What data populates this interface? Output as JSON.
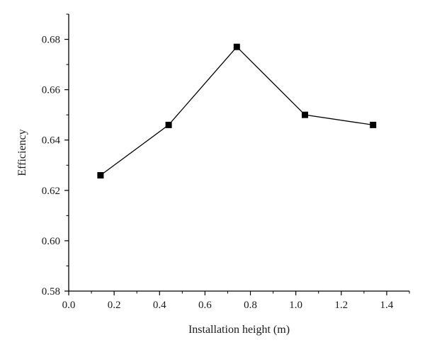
{
  "chart_data": {
    "type": "line",
    "title": "",
    "xlabel": "Installation height (m)",
    "ylabel": "Efficiency",
    "xlim": [
      0.0,
      1.5
    ],
    "ylim": [
      0.58,
      0.69
    ],
    "xticks": [
      "0.0",
      "0.2",
      "0.4",
      "0.6",
      "0.8",
      "1.0",
      "1.2",
      "1.4"
    ],
    "xtick_values": [
      0.0,
      0.2,
      0.4,
      0.6,
      0.8,
      1.0,
      1.2,
      1.4
    ],
    "yticks": [
      "0.58",
      "0.60",
      "0.62",
      "0.64",
      "0.66",
      "0.68"
    ],
    "ytick_values": [
      0.58,
      0.6,
      0.62,
      0.64,
      0.66,
      0.68
    ],
    "grid": false,
    "marker": "square",
    "line_color": "#000000",
    "series": [
      {
        "x": [
          0.14,
          0.44,
          0.74,
          1.04,
          1.34
        ],
        "y": [
          0.626,
          0.646,
          0.677,
          0.65,
          0.646
        ]
      }
    ]
  }
}
